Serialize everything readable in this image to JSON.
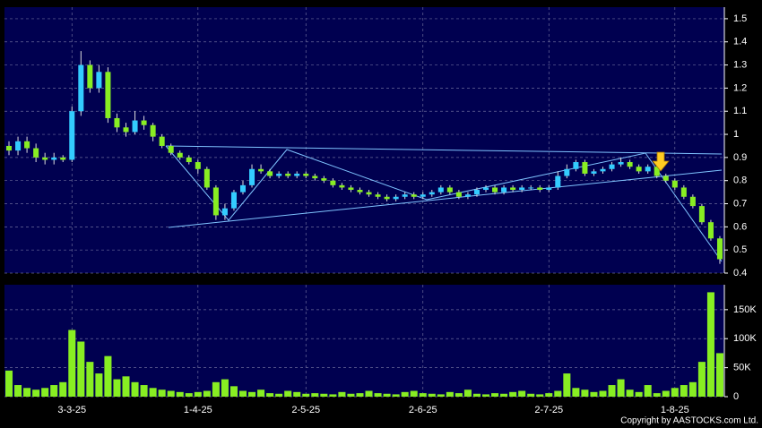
{
  "chart_data": {
    "type": "candlestick",
    "categories": [
      null,
      null,
      null,
      null,
      null,
      null,
      null,
      "3-3-25",
      null,
      null,
      null,
      null,
      null,
      null,
      null,
      null,
      null,
      null,
      null,
      null,
      null,
      "1-4-25",
      null,
      null,
      null,
      null,
      null,
      null,
      null,
      null,
      null,
      null,
      null,
      "2-5-25",
      null,
      null,
      null,
      null,
      null,
      null,
      null,
      null,
      null,
      null,
      null,
      null,
      "2-6-25",
      null,
      null,
      null,
      null,
      null,
      null,
      null,
      null,
      null,
      null,
      null,
      null,
      null,
      "2-7-25",
      null,
      null,
      null,
      null,
      null,
      null,
      null,
      null,
      null,
      null,
      null,
      null,
      null,
      "1-8-25",
      null,
      null,
      null,
      null,
      null
    ],
    "open": [
      0.95,
      0.93,
      0.97,
      0.94,
      0.9,
      0.89,
      0.9,
      0.89,
      1.1,
      1.3,
      1.2,
      1.27,
      1.07,
      1.03,
      1.01,
      1.06,
      1.04,
      0.99,
      0.95,
      0.92,
      0.9,
      0.88,
      0.85,
      0.77,
      0.65,
      0.68,
      0.75,
      0.78,
      0.85,
      0.84,
      0.82,
      0.83,
      0.82,
      0.83,
      0.82,
      0.81,
      0.8,
      0.78,
      0.77,
      0.76,
      0.75,
      0.74,
      0.73,
      0.72,
      0.73,
      0.74,
      0.73,
      0.74,
      0.75,
      0.77,
      0.75,
      0.73,
      0.74,
      0.76,
      0.77,
      0.75,
      0.77,
      0.76,
      0.77,
      0.77,
      0.76,
      0.77,
      0.82,
      0.85,
      0.88,
      0.83,
      0.84,
      0.85,
      0.87,
      0.88,
      0.86,
      0.84,
      0.86,
      0.82,
      0.8,
      0.77,
      0.73,
      0.69,
      0.62,
      0.55
    ],
    "high": [
      0.97,
      0.99,
      0.99,
      0.96,
      0.92,
      0.92,
      0.91,
      1.12,
      1.36,
      1.32,
      1.3,
      1.29,
      1.09,
      1.05,
      1.1,
      1.08,
      1.05,
      1.0,
      0.96,
      0.93,
      0.91,
      0.89,
      0.86,
      0.78,
      0.7,
      0.76,
      0.8,
      0.87,
      0.87,
      0.85,
      0.84,
      0.84,
      0.84,
      0.84,
      0.83,
      0.82,
      0.81,
      0.79,
      0.78,
      0.77,
      0.76,
      0.75,
      0.74,
      0.74,
      0.75,
      0.75,
      0.75,
      0.76,
      0.78,
      0.78,
      0.76,
      0.75,
      0.77,
      0.78,
      0.78,
      0.78,
      0.78,
      0.78,
      0.78,
      0.78,
      0.78,
      0.84,
      0.87,
      0.89,
      0.89,
      0.85,
      0.86,
      0.88,
      0.9,
      0.89,
      0.87,
      0.87,
      0.87,
      0.83,
      0.81,
      0.78,
      0.74,
      0.7,
      0.63,
      0.56
    ],
    "low": [
      0.91,
      0.91,
      0.92,
      0.88,
      0.87,
      0.87,
      0.88,
      0.88,
      1.08,
      1.18,
      1.18,
      1.05,
      1.01,
      0.99,
      1.0,
      1.02,
      0.97,
      0.94,
      0.91,
      0.89,
      0.87,
      0.83,
      0.76,
      0.63,
      0.63,
      0.67,
      0.74,
      0.77,
      0.83,
      0.81,
      0.81,
      0.81,
      0.81,
      0.81,
      0.8,
      0.79,
      0.77,
      0.76,
      0.75,
      0.74,
      0.73,
      0.72,
      0.71,
      0.71,
      0.72,
      0.72,
      0.72,
      0.73,
      0.74,
      0.74,
      0.72,
      0.72,
      0.73,
      0.75,
      0.74,
      0.74,
      0.75,
      0.75,
      0.76,
      0.75,
      0.75,
      0.76,
      0.81,
      0.84,
      0.82,
      0.82,
      0.83,
      0.84,
      0.86,
      0.85,
      0.83,
      0.83,
      0.81,
      0.79,
      0.76,
      0.72,
      0.68,
      0.61,
      0.54,
      0.44
    ],
    "close": [
      0.93,
      0.97,
      0.94,
      0.9,
      0.89,
      0.9,
      0.89,
      1.1,
      1.3,
      1.2,
      1.27,
      1.07,
      1.03,
      1.01,
      1.06,
      1.04,
      0.99,
      0.95,
      0.92,
      0.9,
      0.88,
      0.85,
      0.77,
      0.65,
      0.68,
      0.75,
      0.78,
      0.85,
      0.84,
      0.82,
      0.83,
      0.82,
      0.83,
      0.82,
      0.81,
      0.8,
      0.78,
      0.77,
      0.76,
      0.75,
      0.74,
      0.73,
      0.72,
      0.73,
      0.74,
      0.73,
      0.74,
      0.75,
      0.77,
      0.75,
      0.73,
      0.74,
      0.76,
      0.77,
      0.75,
      0.77,
      0.76,
      0.77,
      0.77,
      0.76,
      0.77,
      0.82,
      0.85,
      0.88,
      0.83,
      0.84,
      0.85,
      0.87,
      0.88,
      0.86,
      0.84,
      0.86,
      0.82,
      0.8,
      0.77,
      0.73,
      0.69,
      0.62,
      0.55,
      0.46
    ],
    "volume": [
      45000,
      20000,
      15000,
      12000,
      15000,
      20000,
      25000,
      115000,
      95000,
      60000,
      40000,
      70000,
      30000,
      35000,
      25000,
      20000,
      15000,
      12000,
      10000,
      8000,
      6000,
      8000,
      10000,
      25000,
      30000,
      18000,
      10000,
      8000,
      12000,
      6000,
      5000,
      10000,
      8000,
      5000,
      6000,
      5000,
      4000,
      8000,
      5000,
      6000,
      10000,
      6000,
      5000,
      4000,
      8000,
      10000,
      6000,
      5000,
      4000,
      8000,
      6000,
      12000,
      5000,
      4000,
      6000,
      5000,
      8000,
      10000,
      5000,
      4000,
      6000,
      10000,
      40000,
      15000,
      12000,
      8000,
      10000,
      20000,
      30000,
      12000,
      8000,
      20000,
      6000,
      10000,
      15000,
      20000,
      25000,
      60000,
      180000,
      75000
    ],
    "ylim": [
      0.4,
      1.55
    ],
    "yticks": [
      0.4,
      0.5,
      0.6,
      0.7,
      0.8,
      0.9,
      1,
      1.1,
      1.2,
      1.3,
      1.4,
      1.5
    ],
    "volume_ylim": [
      0,
      193000
    ],
    "volume_yticks": [
      0,
      {
        "value": 50000,
        "label": "50K"
      },
      {
        "value": 100000,
        "label": "100K"
      },
      {
        "value": 150000,
        "label": "150K"
      }
    ],
    "up_color": "#33ccff",
    "down_color": "#88ee22",
    "volume_color": "#88ee22",
    "grid": true
  },
  "copyright": "Copyright by AASTOCKS.com Ltd."
}
